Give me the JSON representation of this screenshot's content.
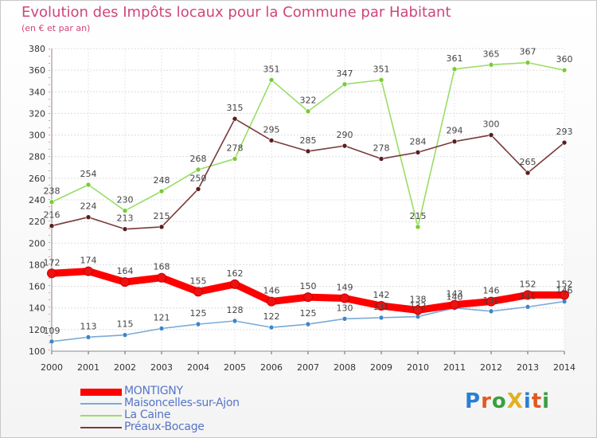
{
  "header": {
    "title": "Evolution des Impôts locaux pour la Commune par Habitant",
    "subtitle": "(en € et par an)"
  },
  "logo": {
    "text": "ProXiti",
    "letter_colors": [
      "#2a7fd0",
      "#e05a20",
      "#3aa040",
      "#e0b020",
      "#2a7fd0",
      "#e05a20",
      "#3aa040"
    ]
  },
  "chart_data": {
    "type": "line",
    "title": "Evolution des Impôts locaux pour la Commune par Habitant",
    "subtitle": "(en € et par an)",
    "x": [
      "2000",
      "2001",
      "2002",
      "2003",
      "2004",
      "2005",
      "2006",
      "2007",
      "2008",
      "2009",
      "2010",
      "2011",
      "2012",
      "2013",
      "2014"
    ],
    "ylim": [
      100,
      380
    ],
    "yticks": [
      100,
      120,
      140,
      160,
      180,
      200,
      220,
      240,
      260,
      280,
      300,
      320,
      340,
      360,
      380
    ],
    "grid": true,
    "legend_position": "bottom-left",
    "series": [
      {
        "name": "MONTIGNY",
        "color": "#ff0000",
        "marker": "#ee1111",
        "values": [
          172,
          174,
          164,
          168,
          155,
          162,
          146,
          150,
          149,
          142,
          138,
          143,
          146,
          152,
          152
        ],
        "labels": [
          "172",
          "174",
          "164",
          "168",
          "155",
          "162",
          "146",
          "150",
          "149",
          "142",
          "138",
          "143",
          "146",
          "152",
          "152"
        ]
      },
      {
        "name": "Maisoncelles-sur-Ajon",
        "color": "#7aaad6",
        "marker": "#3d86c8",
        "values": [
          109,
          113,
          115,
          121,
          125,
          128,
          122,
          125,
          130,
          131,
          132,
          140,
          137,
          141,
          146
        ],
        "labels": [
          "109",
          "113",
          "115",
          "121",
          "125",
          "128",
          "122",
          "125",
          "130",
          "131",
          "132",
          "140",
          "137",
          "141",
          "146"
        ]
      },
      {
        "name": "La Caine",
        "color": "#99dd66",
        "marker": "#77cc33",
        "values": [
          238,
          254,
          230,
          248,
          268,
          278,
          351,
          322,
          347,
          351,
          215,
          361,
          365,
          367,
          360
        ],
        "labels": [
          "238",
          "254",
          "230",
          "248",
          "268",
          "278",
          "351",
          "322",
          "347",
          "351",
          "215",
          "361",
          "365",
          "367",
          "360"
        ]
      },
      {
        "name": "Préaux-Bocage",
        "color": "#7a3a3a",
        "marker": "#5a1e1e",
        "values": [
          216,
          224,
          213,
          215,
          250,
          315,
          295,
          285,
          290,
          278,
          284,
          294,
          300,
          265,
          293
        ],
        "labels": [
          "216",
          "224",
          "213",
          "215",
          "250",
          "315",
          "295",
          "285",
          "290",
          "278",
          "284",
          "294",
          "300",
          "265",
          "293"
        ]
      }
    ]
  }
}
